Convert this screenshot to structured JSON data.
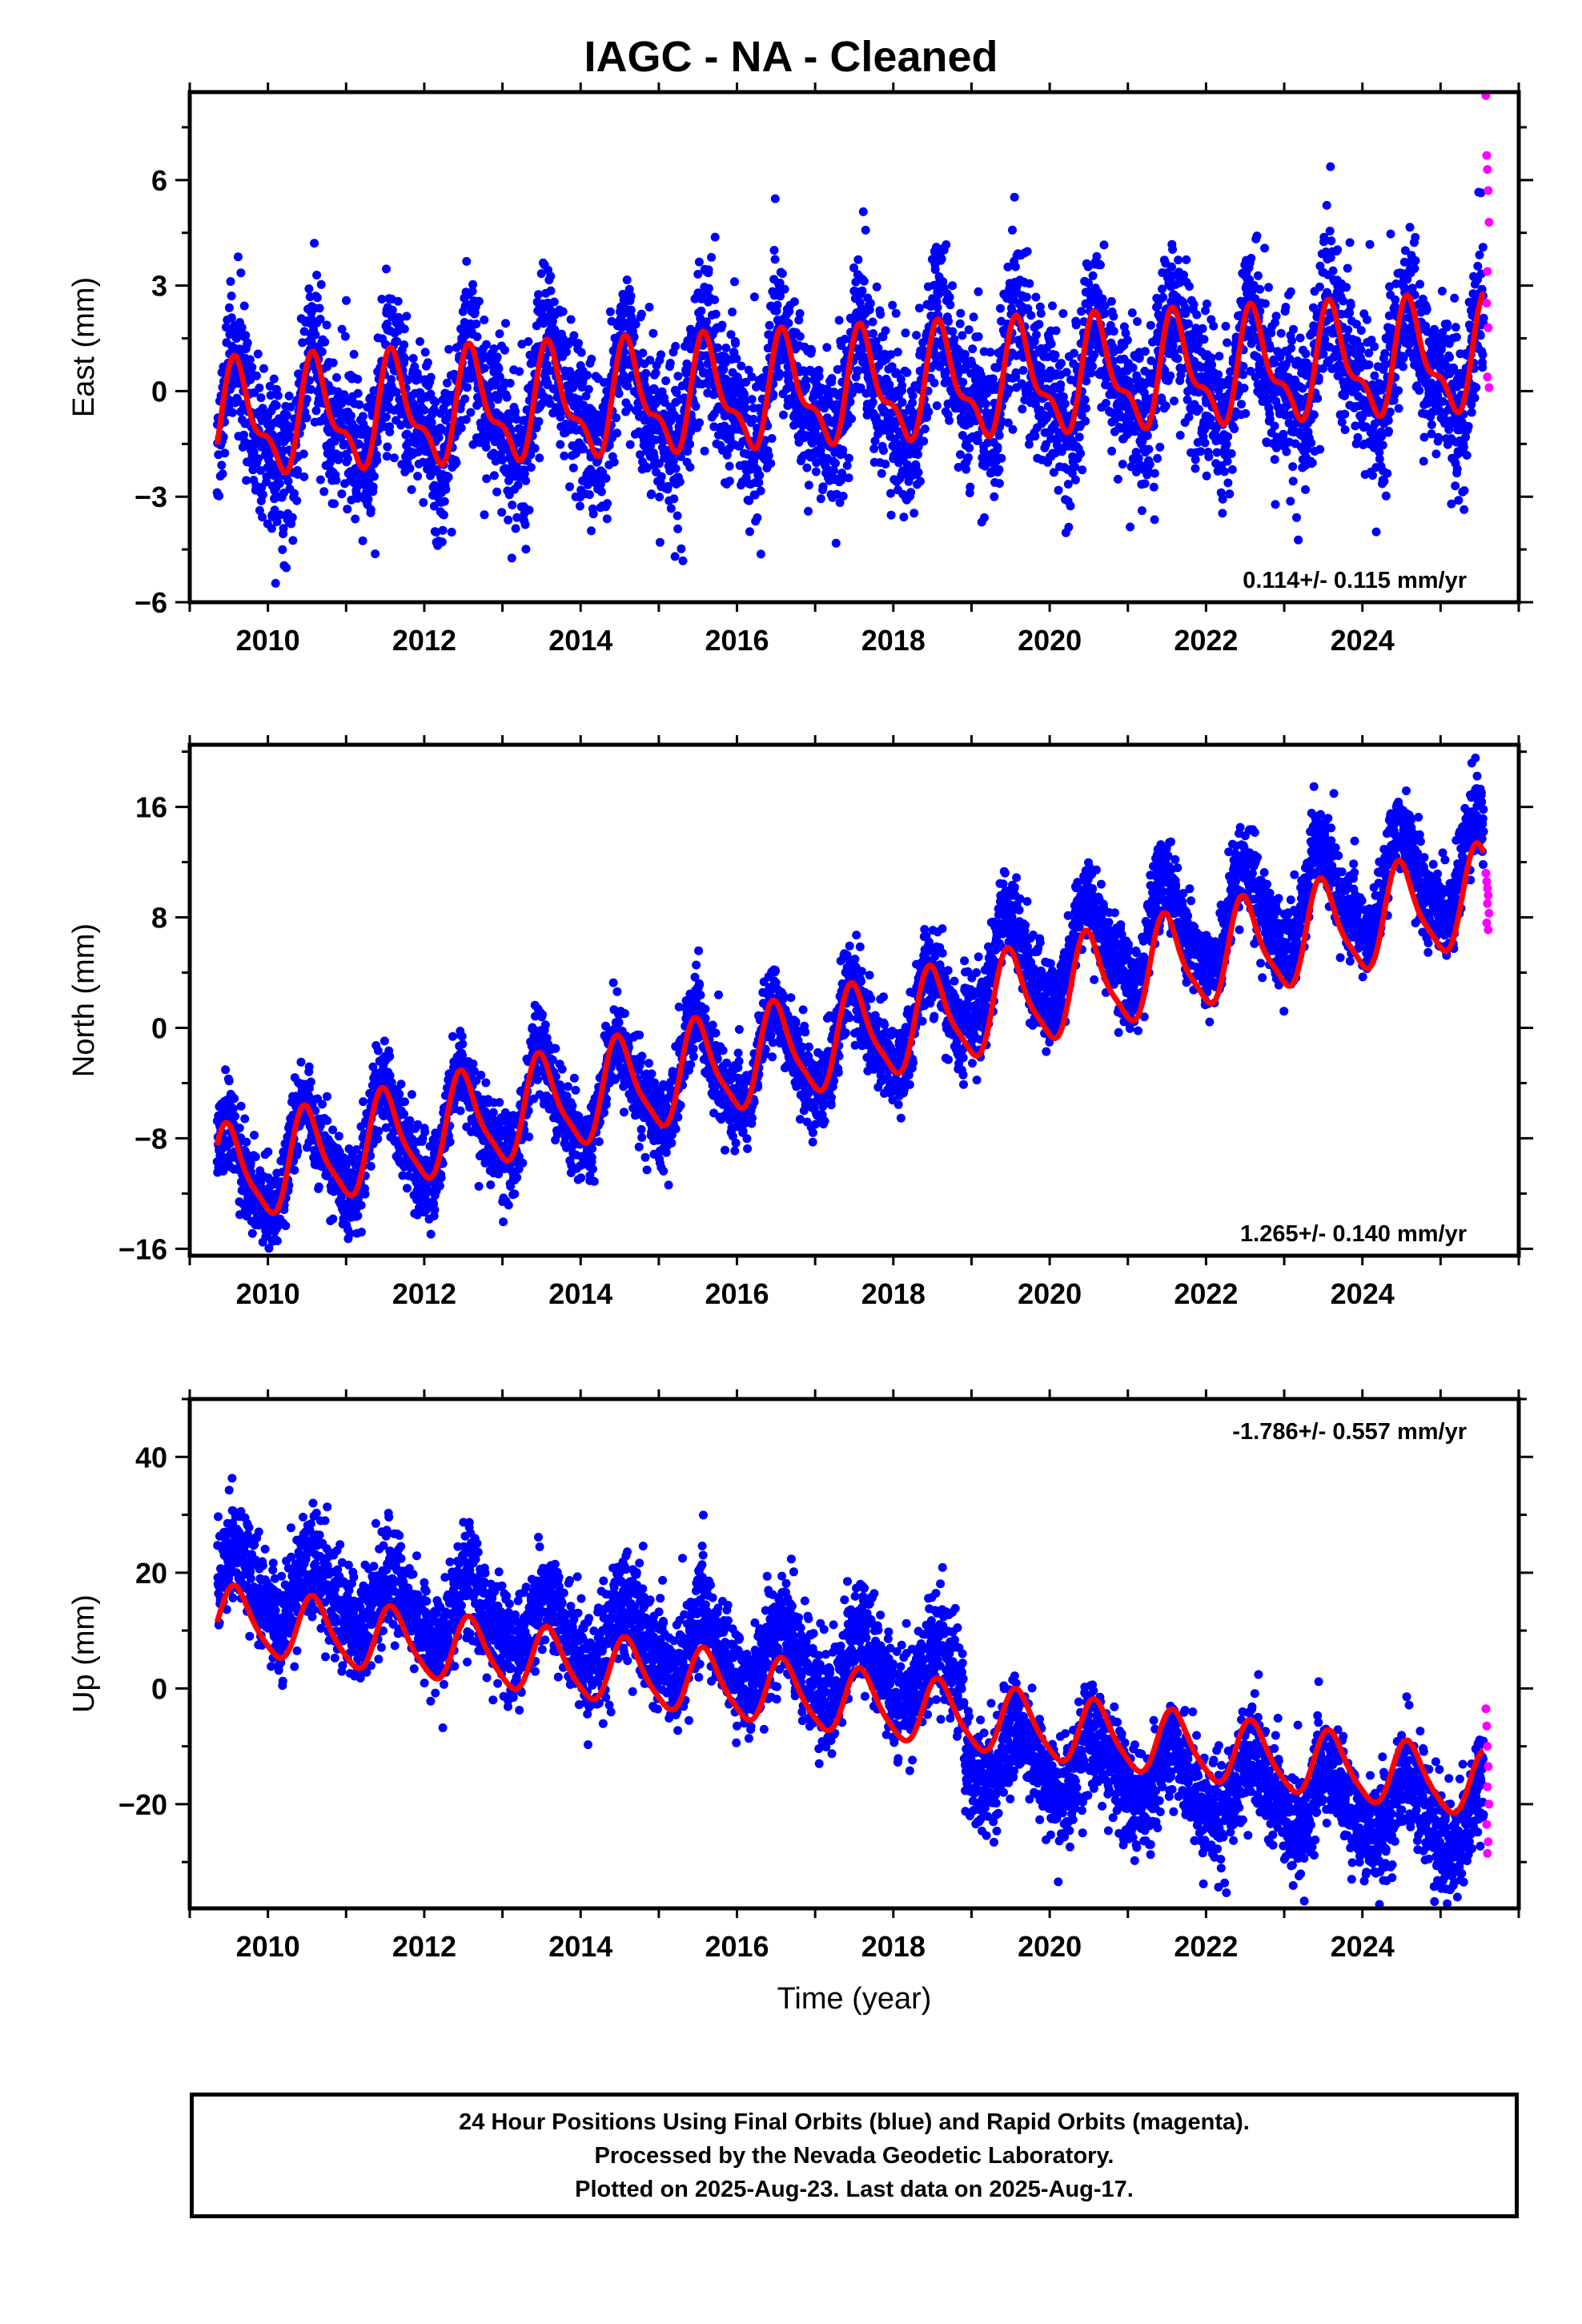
{
  "title": "IAGC  - NA - Cleaned",
  "colors": {
    "final_orbits": "#0000ff",
    "rapid_orbits": "#ff00ff",
    "model": "#ff0000",
    "axis": "#000000"
  },
  "footer": {
    "line1": "24 Hour Positions Using Final Orbits (blue) and Rapid Orbits (magenta).",
    "line2": "Processed by the Nevada Geodetic Laboratory.",
    "line3": "Plotted on 2025-Aug-23. Last data on 2025-Aug-17."
  },
  "chart_data": [
    {
      "type": "scatter",
      "component": "east",
      "ylabel": "East (mm)",
      "xlabel": "",
      "xlim": [
        2009.0,
        2026.0
      ],
      "ylim": [
        -6,
        8.5
      ],
      "xticks": [
        2010,
        2012,
        2014,
        2016,
        2018,
        2020,
        2022,
        2024
      ],
      "yticks": [
        -6,
        -3,
        0,
        3,
        6
      ],
      "ytick_labels": [
        "−6",
        "−3",
        "0",
        "3",
        "6"
      ],
      "rate_label": "0.114+/- 0.115 mm/yr",
      "rate_label_position": "bottom-right",
      "series": [
        {
          "name": "Final Orbits",
          "color": "#0000ff",
          "model": {
            "start": 2009.35,
            "end": 2025.55,
            "trend_at_start": -0.9,
            "trend_per_year": 0.114,
            "annual_amplitude": 1.4,
            "semiannual_amplitude": 0.6,
            "phase_peak": 0.62
          },
          "scatter_sd": 1.1
        },
        {
          "name": "Rapid Orbits",
          "color": "#ff00ff",
          "x": [
            2025.58,
            2025.59,
            2025.6,
            2025.61,
            2025.62,
            2025.6,
            2025.59,
            2025.61,
            2025.6,
            2025.62
          ],
          "y": [
            8.4,
            6.7,
            6.3,
            5.7,
            4.8,
            3.4,
            2.5,
            1.8,
            0.4,
            0.1
          ]
        },
        {
          "name": "Model",
          "color": "#ff0000",
          "model_fit": {
            "trend_at_start": -0.9,
            "trend_per_year": 0.114,
            "annual_amplitude": 1.4,
            "semiannual_amplitude": 0.6,
            "phase_peak": 0.62
          }
        }
      ]
    },
    {
      "type": "scatter",
      "component": "north",
      "ylabel": "North (mm)",
      "xlabel": "",
      "xlim": [
        2009.0,
        2026.0
      ],
      "ylim": [
        -16.5,
        20.5
      ],
      "xticks": [
        2010,
        2012,
        2014,
        2016,
        2018,
        2020,
        2022,
        2024
      ],
      "yticks": [
        -16,
        -8,
        0,
        8,
        16
      ],
      "ytick_labels": [
        "−16",
        "−8",
        "0",
        "8",
        "16"
      ],
      "rate_label": "1.265+/- 0.140 mm/yr",
      "rate_label_position": "bottom-right",
      "series": [
        {
          "name": "Final Orbits",
          "color": "#0000ff",
          "model": {
            "start": 2009.35,
            "end": 2025.55,
            "trend_at_start": -11.0,
            "trend_per_year": 1.265,
            "annual_amplitude": 3.4,
            "semiannual_amplitude": 0.8,
            "phase_peak": 0.5,
            "offset_after_2019": 2.5
          },
          "scatter_sd": 1.5
        },
        {
          "name": "Rapid Orbits",
          "color": "#ff00ff",
          "x": [
            2025.58,
            2025.59,
            2025.6,
            2025.61,
            2025.6,
            2025.62,
            2025.59,
            2025.61
          ],
          "y": [
            11.2,
            10.6,
            10.1,
            9.6,
            9.0,
            8.3,
            7.6,
            7.1
          ]
        },
        {
          "name": "Model",
          "color": "#ff0000",
          "model_fit": {
            "trend_at_start": -11.0,
            "trend_per_year": 1.265,
            "annual_amplitude": 3.4,
            "semiannual_amplitude": 0.8,
            "phase_peak": 0.5
          }
        }
      ]
    },
    {
      "type": "scatter",
      "component": "up",
      "ylabel": "Up (mm)",
      "xlabel": "Time (year)",
      "xlim": [
        2009.0,
        2026.0
      ],
      "ylim": [
        -38,
        50
      ],
      "xticks": [
        2010,
        2012,
        2014,
        2016,
        2018,
        2020,
        2022,
        2024
      ],
      "yticks": [
        -20,
        0,
        20,
        40
      ],
      "ytick_labels": [
        "−20",
        "0",
        "20",
        "40"
      ],
      "rate_label": "-1.786+/- 0.557 mm/yr",
      "rate_label_position": "top-right",
      "series": [
        {
          "name": "Final Orbits",
          "color": "#0000ff",
          "model": {
            "start": 2009.35,
            "end": 2025.55,
            "trend_at_start": 12.0,
            "trend_per_year": -1.786,
            "annual_amplitude": 5.5,
            "semiannual_amplitude": 1.0,
            "phase_peak": 0.6,
            "offset_before_2019": 6.0,
            "offset_after_2019": -6.0
          },
          "scatter_sd": 4.5
        },
        {
          "name": "Rapid Orbits",
          "color": "#ff00ff",
          "x": [
            2025.58,
            2025.59,
            2025.6,
            2025.61,
            2025.6,
            2025.62,
            2025.59,
            2025.61,
            2025.6
          ],
          "y": [
            -3.5,
            -6.5,
            -10.0,
            -13.5,
            -17.0,
            -20.0,
            -23.5,
            -26.5,
            -28.5
          ]
        },
        {
          "name": "Model",
          "color": "#ff0000",
          "model_fit": {
            "trend_at_start": 12.0,
            "trend_per_year": -1.786,
            "annual_amplitude": 5.5,
            "semiannual_amplitude": 1.0,
            "phase_peak": 0.6
          }
        }
      ]
    }
  ]
}
